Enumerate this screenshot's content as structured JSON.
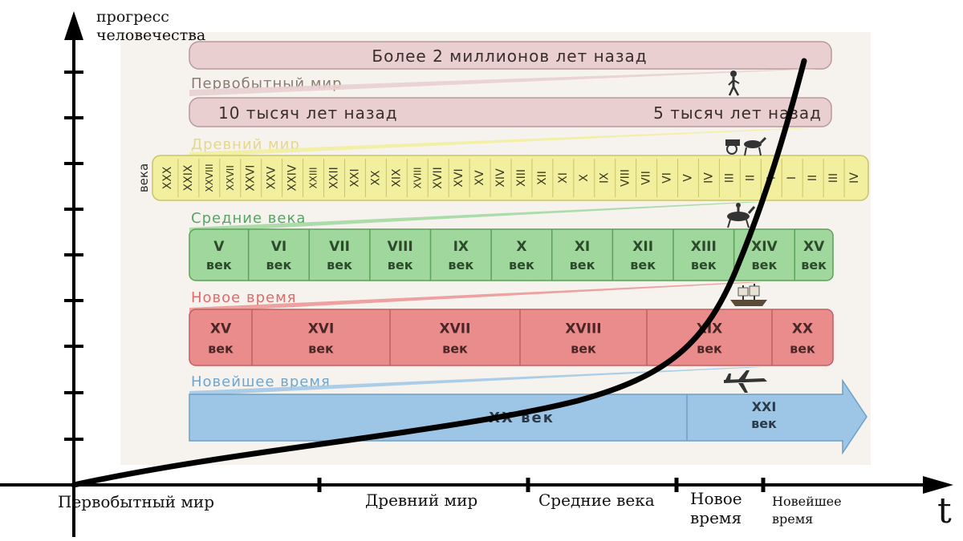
{
  "y_axis": {
    "label": "прогресс человечества"
  },
  "x_axis": {
    "label": "t",
    "eras": [
      "Первобытный мир",
      "Древний мир",
      "Средние века",
      "Новое время",
      "Новейшее время"
    ]
  },
  "row1": {
    "text": "Более 2 миллионов лет назад"
  },
  "era_primitive": {
    "title": "Первобытный мир"
  },
  "row2": {
    "left": "10 тысяч лет назад",
    "right": "5 тысяч лет назад"
  },
  "era_ancient": {
    "title": "Древний мир",
    "side_label": "века",
    "centuries": [
      "XXX",
      "XXIX",
      "XXVIII",
      "XXVII",
      "XXVI",
      "XXV",
      "XXIV",
      "XXIII",
      "XXII",
      "XXI",
      "XX",
      "XIX",
      "XVIII",
      "XVII",
      "XVI",
      "XV",
      "XIV",
      "XIII",
      "XII",
      "XI",
      "X",
      "IX",
      "VIII",
      "VII",
      "VI",
      "V",
      "IV",
      "III",
      "II",
      "I",
      "I",
      "II",
      "III",
      "IV"
    ]
  },
  "era_middle": {
    "title": "Средние века",
    "centuries": [
      "V",
      "VI",
      "VII",
      "VIII",
      "IX",
      "X",
      "XI",
      "XII",
      "XIII",
      "XIV",
      "XV"
    ],
    "unit": "век"
  },
  "era_new": {
    "title": "Новое время",
    "centuries": [
      "XV",
      "XVI",
      "XVII",
      "XVIII",
      "XIX",
      "XX"
    ],
    "unit": "век"
  },
  "era_newest": {
    "title": "Новейшее время",
    "main": "XX век",
    "next": "XXI",
    "unit": "век"
  },
  "colors": {
    "primitive": "#e9cfd0",
    "ancient": "#f2ef9e",
    "middle": "#9fd79c",
    "new": "#eb8c8c",
    "newest": "#9dc6e6",
    "curve": "#000000"
  },
  "icons": [
    "walking-man-icon",
    "horse-cart-icon",
    "horse-rider-icon",
    "sailing-ship-icon",
    "airplane-icon"
  ]
}
